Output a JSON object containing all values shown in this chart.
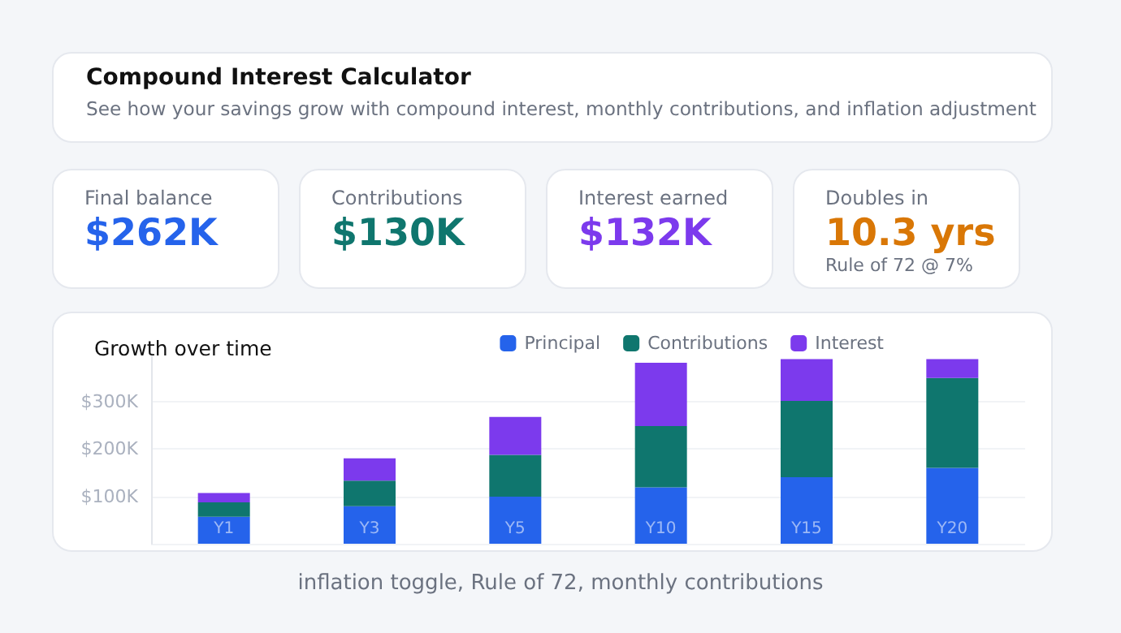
{
  "chart_data": [
    {
      "type": "other",
      "title": "Compound Interest Calculator",
      "subtitle": "See how your savings grow with compound interest, monthly contributions, and inflation adjustment",
      "annotations": [
        "Final balance",
        "$262K",
        "Contributions",
        "$130K",
        "Interest earned",
        "$132K",
        "Doubles in",
        "10.3 yrs",
        "Rule of 72 @ 7%"
      ]
    },
    {
      "type": "bar",
      "title": "Growth over time",
      "stacked": true,
      "categories": [
        "Y1",
        "Y3",
        "Y5",
        "Y10",
        "Y15",
        "Y20"
      ],
      "series": [
        {
          "name": "Principal",
          "color": "#2563eb",
          "values": [
            57,
            79,
            99,
            119,
            140,
            160
          ]
        },
        {
          "name": "Contributions",
          "color": "#0f766e",
          "values": [
            30,
            54,
            88,
            129,
            161,
            189
          ]
        },
        {
          "name": "Interest",
          "color": "#7c3aed",
          "values": [
            20,
            47,
            80,
            133,
            88,
            40
          ]
        }
      ],
      "ylim": [
        0,
        400
      ],
      "yticks": [
        {
          "value": 0,
          "label": null
        },
        {
          "value": 100,
          "label": "$100K"
        },
        {
          "value": 200,
          "label": "$200K"
        },
        {
          "value": 300,
          "label": "$300K"
        }
      ],
      "grid": "y",
      "legend": "top right",
      "annotations": [
        "inflation toggle, Rule of 72, monthly contributions"
      ]
    }
  ]
}
